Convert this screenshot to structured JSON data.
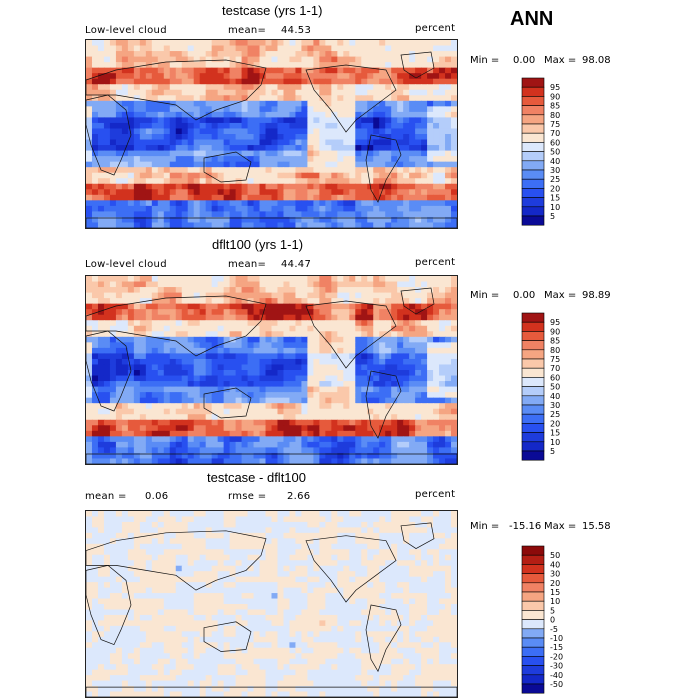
{
  "season": "ANN",
  "panels": [
    {
      "title": "testcase (yrs 1-1)",
      "left_label": "Low-level cloud",
      "stat1_label": "mean=",
      "stat1_value": "44.53",
      "stat2_label": "",
      "stat2_value": "",
      "units": "percent",
      "min_label": "Min =",
      "min_value": "0.00",
      "max_label": "Max =",
      "max_value": "98.08"
    },
    {
      "title": "dflt100 (yrs 1-1)",
      "left_label": "Low-level cloud",
      "stat1_label": "mean=",
      "stat1_value": "44.47",
      "stat2_label": "",
      "stat2_value": "",
      "units": "percent",
      "min_label": "Min =",
      "min_value": "0.00",
      "max_label": "Max =",
      "max_value": "98.89"
    },
    {
      "title": "testcase - dflt100",
      "left_label": "",
      "stat1_label": "mean =",
      "stat1_value": "0.06",
      "stat2_label": "rmse =",
      "stat2_value": "2.66",
      "units": "percent",
      "min_label": "Min =",
      "min_value": "-15.16",
      "max_label": "Max =",
      "max_value": "15.58"
    }
  ],
  "chart_data": [
    {
      "type": "heatmap",
      "title": "testcase (yrs 1-1)",
      "variable": "Low-level cloud",
      "units": "percent",
      "mean": 44.53,
      "min": 0.0,
      "max": 98.08,
      "colorbar_levels": [
        "5",
        "10",
        "15",
        "20",
        "25",
        "30",
        "40",
        "50",
        "60",
        "70",
        "75",
        "80",
        "85",
        "90",
        "95"
      ],
      "colors": [
        "#0a0a96",
        "#1428c8",
        "#1e3cdc",
        "#2850f0",
        "#3c6ef5",
        "#5a8cf5",
        "#82aaf5",
        "#b4cdfa",
        "#dce8fc",
        "#fae6d2",
        "#fac8aa",
        "#f5a582",
        "#f08264",
        "#e65a3c",
        "#d2321e",
        "#a01414"
      ]
    },
    {
      "type": "heatmap",
      "title": "dflt100 (yrs 1-1)",
      "variable": "Low-level cloud",
      "units": "percent",
      "mean": 44.47,
      "min": 0.0,
      "max": 98.89,
      "colorbar_levels": [
        "5",
        "10",
        "15",
        "20",
        "25",
        "30",
        "40",
        "50",
        "60",
        "70",
        "75",
        "80",
        "85",
        "90",
        "95"
      ],
      "colors": [
        "#0a0a96",
        "#1428c8",
        "#1e3cdc",
        "#2850f0",
        "#3c6ef5",
        "#5a8cf5",
        "#82aaf5",
        "#b4cdfa",
        "#dce8fc",
        "#fae6d2",
        "#fac8aa",
        "#f5a582",
        "#f08264",
        "#e65a3c",
        "#d2321e",
        "#a01414"
      ]
    },
    {
      "type": "heatmap",
      "title": "testcase - dflt100",
      "units": "percent",
      "mean": 0.06,
      "rmse": 2.66,
      "min": -15.16,
      "max": 15.58,
      "colorbar_levels": [
        "-50",
        "-40",
        "-30",
        "-20",
        "-15",
        "-10",
        "-5",
        "0",
        "5",
        "10",
        "15",
        "20",
        "30",
        "40",
        "50"
      ],
      "colors": [
        "#0a0a96",
        "#1428c8",
        "#1e3cdc",
        "#2850f0",
        "#3c6ef5",
        "#5a8cf5",
        "#82aaf5",
        "#dce8fc",
        "#fae6d2",
        "#fac8aa",
        "#f5a582",
        "#f08264",
        "#e65a3c",
        "#d2321e",
        "#b41e14",
        "#8c0a0a"
      ]
    }
  ]
}
